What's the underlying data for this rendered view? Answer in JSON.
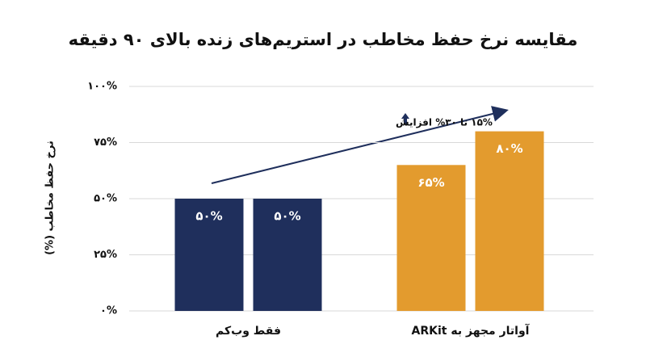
{
  "chart_data": {
    "type": "bar",
    "title": "مقایسه نرخ حفظ مخاطب در استریم‌های زنده بالای ۹۰ دقیقه",
    "y_label": "نرخ حفظ مخاطب (%)",
    "annotation": "۱۵% تا ۳۰% افزایش",
    "categories": [
      "فقط وب‌کم",
      "آواتار مجهز به ARKit"
    ],
    "groups": [
      {
        "color": "#1f2f5c",
        "values": [
          50,
          50
        ],
        "value_labels": [
          "۵۰%",
          "۵۰%"
        ]
      },
      {
        "color": "#e39b2e",
        "values": [
          65,
          80
        ],
        "value_labels": [
          "۶۵%",
          "۸۰%"
        ]
      }
    ],
    "ylim": [
      0,
      100
    ],
    "yticks": [
      {
        "value": 0,
        "label": "۰%"
      },
      {
        "value": 25,
        "label": "۲۵%"
      },
      {
        "value": 50,
        "label": "۵۰%"
      },
      {
        "value": 75,
        "label": "۷۵%"
      },
      {
        "value": 100,
        "label": "۱۰۰%"
      }
    ],
    "grid": true
  }
}
